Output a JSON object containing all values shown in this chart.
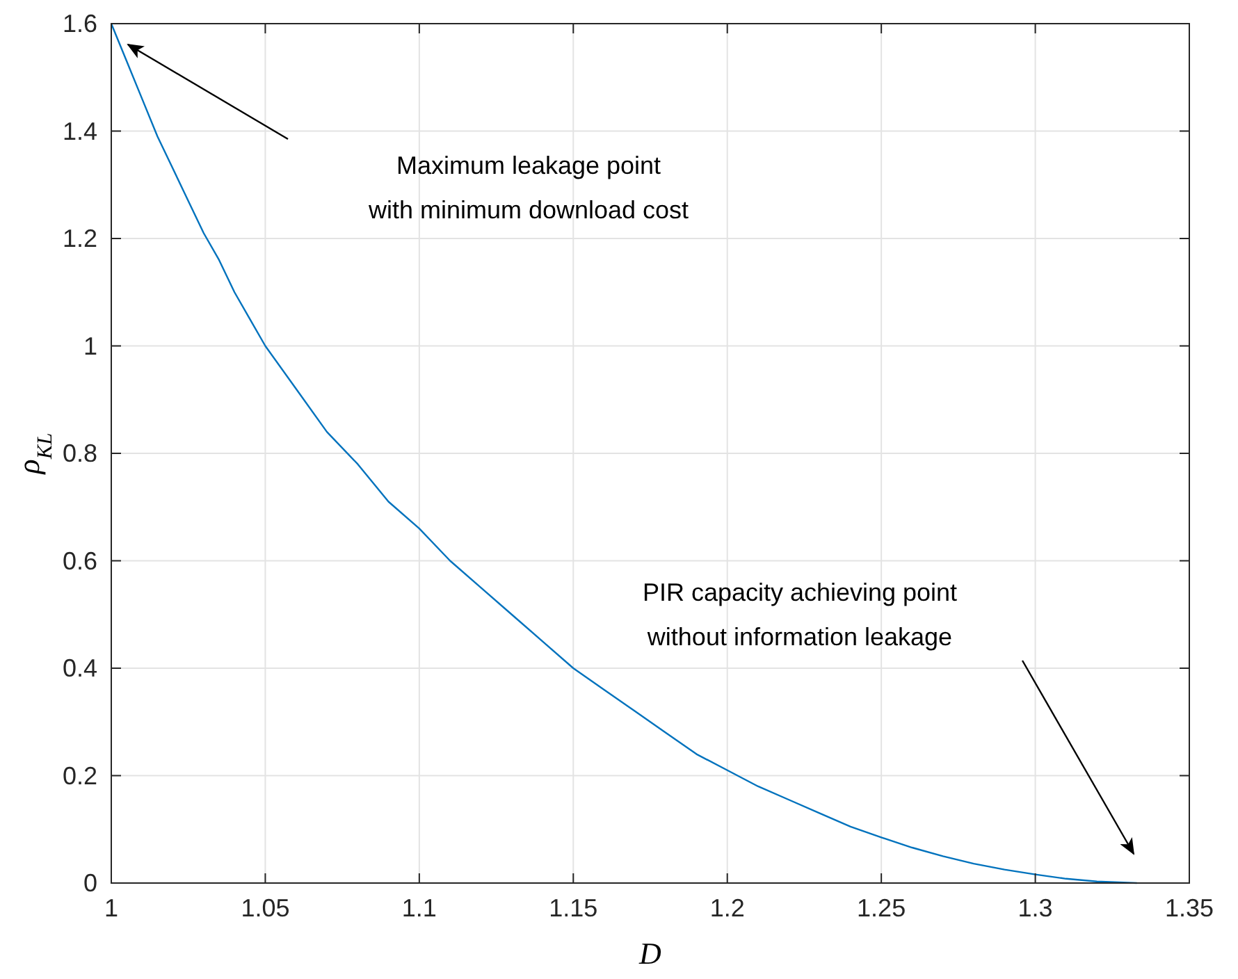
{
  "chart_data": {
    "type": "line",
    "xlabel": "D",
    "ylabel": "ρ$_{KL}$",
    "xlim": [
      1,
      1.35
    ],
    "xticks": [
      1,
      1.05,
      1.1,
      1.15,
      1.2,
      1.25,
      1.3,
      1.35
    ],
    "ylim": [
      0,
      1.6
    ],
    "yticks": [
      0,
      0.2,
      0.4,
      0.6,
      0.8,
      1,
      1.2,
      1.4,
      1.6
    ],
    "grid": true,
    "marker": "none",
    "line_style": "solid",
    "series": [
      {
        "color": "#0072bd",
        "x": [
          1,
          1.005,
          1.01,
          1.015,
          1.02,
          1.025,
          1.03,
          1.035,
          1.04,
          1.045,
          1.05,
          1.06,
          1.07,
          1.08,
          1.09,
          1.1,
          1.11,
          1.12,
          1.13,
          1.14,
          1.15,
          1.16,
          1.17,
          1.18,
          1.19,
          1.2,
          1.21,
          1.22,
          1.23,
          1.24,
          1.25,
          1.26,
          1.27,
          1.28,
          1.29,
          1.3,
          1.31,
          1.32,
          1.333
        ],
        "values": [
          1.6,
          1.53,
          1.46,
          1.39,
          1.33,
          1.27,
          1.21,
          1.16,
          1.1,
          1.05,
          1.0,
          0.92,
          0.84,
          0.78,
          0.71,
          0.66,
          0.6,
          0.55,
          0.5,
          0.45,
          0.4,
          0.36,
          0.32,
          0.28,
          0.24,
          0.21,
          0.18,
          0.155,
          0.13,
          0.105,
          0.085,
          0.066,
          0.05,
          0.036,
          0.025,
          0.016,
          0.008,
          0.003,
          0
        ]
      }
    ],
    "annotations": [
      "Maximum leakage point\nwith minimum download cost",
      "PIR capacity achieving point\nwithout information leakage"
    ]
  }
}
